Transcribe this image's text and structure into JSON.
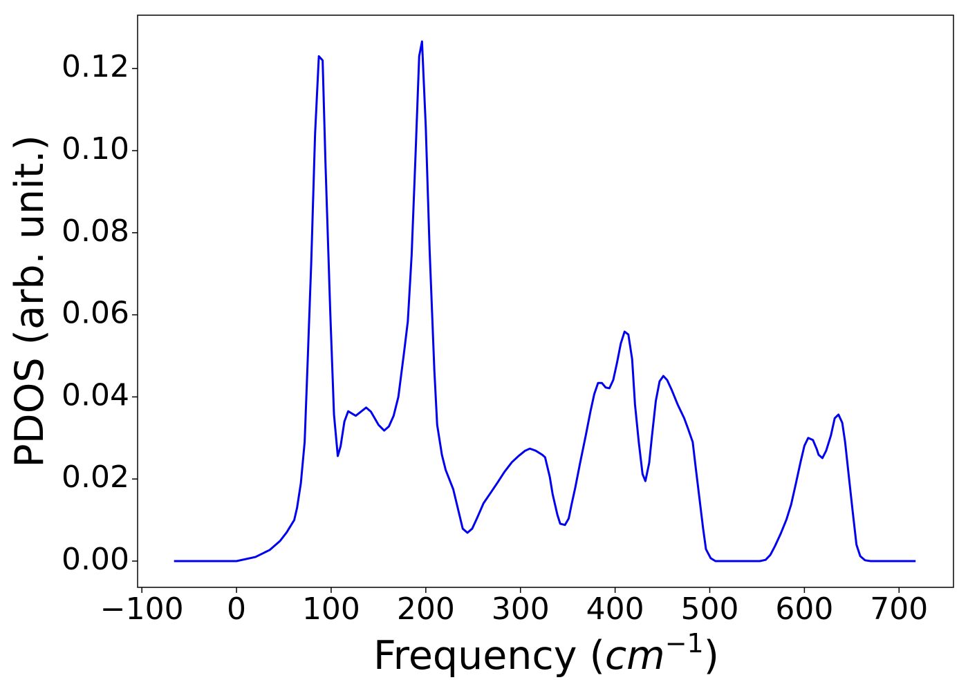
{
  "chart_data": {
    "type": "line",
    "xlabel": {
      "text": "Frequency (",
      "math": "cm",
      "sup": "−1",
      "end": ")"
    },
    "ylabel": "PDOS (arb. unit.)",
    "xlim": [
      -104.5,
      757.5
    ],
    "ylim": [
      -0.0064,
      0.133
    ],
    "xticks": [
      {
        "value": -100,
        "label": "−100"
      },
      0,
      100,
      200,
      300,
      400,
      500,
      600,
      700
    ],
    "yticks": [
      {
        "value": 0,
        "label": "0.00"
      },
      {
        "value": 0.02,
        "label": "0.02"
      },
      {
        "value": 0.04,
        "label": "0.04"
      },
      {
        "value": 0.06,
        "label": "0.06"
      },
      {
        "value": 0.08,
        "label": "0.08"
      },
      {
        "value": 0.1,
        "label": "0.10"
      },
      {
        "value": 0.12,
        "label": "0.12"
      }
    ],
    "grid": false,
    "series": [
      {
        "color": "#0000ee",
        "x": [
          -66,
          0,
          20,
          35,
          46,
          53,
          61,
          64,
          68,
          72,
          75,
          79,
          83,
          87,
          91,
          94,
          99,
          103,
          107,
          110,
          114,
          118,
          126,
          132,
          137,
          142,
          150,
          156,
          161,
          166,
          171,
          177,
          181,
          185,
          189,
          193,
          196,
          200,
          204,
          209,
          212,
          217,
          221,
          229,
          236,
          239,
          244,
          249,
          254,
          261,
          269,
          276,
          283,
          291,
          298,
          305,
          310,
          316,
          323,
          326,
          331,
          334,
          339,
          342,
          347,
          351,
          354,
          358,
          363,
          369,
          374,
          378,
          382,
          386,
          390,
          394,
          398,
          402,
          406,
          410,
          414,
          418,
          421,
          425,
          429,
          432,
          436,
          439,
          443,
          447,
          451,
          455,
          460,
          466,
          473,
          477,
          482,
          485,
          489,
          493,
          496,
          501,
          506,
          553,
          559,
          564,
          569,
          575,
          581,
          586,
          591,
          596,
          600,
          604,
          609,
          613,
          615,
          619,
          623,
          628,
          632,
          636,
          640,
          643,
          647,
          651,
          655,
          659,
          664,
          670,
          717.5
        ],
        "values": [
          0,
          0,
          0.001,
          0.0027,
          0.0049,
          0.007,
          0.01,
          0.013,
          0.019,
          0.029,
          0.0475,
          0.073,
          0.104,
          0.123,
          0.122,
          0.097,
          0.061,
          0.0357,
          0.0256,
          0.028,
          0.034,
          0.0365,
          0.0354,
          0.0365,
          0.0374,
          0.0364,
          0.0332,
          0.0318,
          0.0328,
          0.0354,
          0.04,
          0.0508,
          0.0584,
          0.0744,
          0.098,
          0.123,
          0.1266,
          0.1056,
          0.076,
          0.0466,
          0.0332,
          0.0259,
          0.0222,
          0.0175,
          0.0108,
          0.0079,
          0.0069,
          0.0079,
          0.0104,
          0.0141,
          0.0168,
          0.0192,
          0.0217,
          0.0241,
          0.0256,
          0.0269,
          0.0274,
          0.0269,
          0.0259,
          0.0253,
          0.0205,
          0.0163,
          0.0113,
          0.0091,
          0.0088,
          0.0104,
          0.0138,
          0.018,
          0.0239,
          0.0306,
          0.0365,
          0.0407,
          0.0434,
          0.0434,
          0.0423,
          0.0421,
          0.0441,
          0.0483,
          0.053,
          0.0559,
          0.0552,
          0.0492,
          0.0382,
          0.029,
          0.0212,
          0.0195,
          0.0239,
          0.0306,
          0.039,
          0.0438,
          0.0451,
          0.0441,
          0.0416,
          0.0382,
          0.0348,
          0.0323,
          0.029,
          0.0231,
          0.0155,
          0.0079,
          0.0029,
          0.0007,
          0,
          0,
          0.0003,
          0.0015,
          0.0037,
          0.0067,
          0.0101,
          0.0138,
          0.0189,
          0.0242,
          0.0281,
          0.03,
          0.0295,
          0.0273,
          0.0259,
          0.0251,
          0.0269,
          0.0306,
          0.0348,
          0.0357,
          0.0337,
          0.029,
          0.0205,
          0.0121,
          0.004,
          0.0012,
          0.0002,
          0,
          0
        ]
      }
    ]
  }
}
